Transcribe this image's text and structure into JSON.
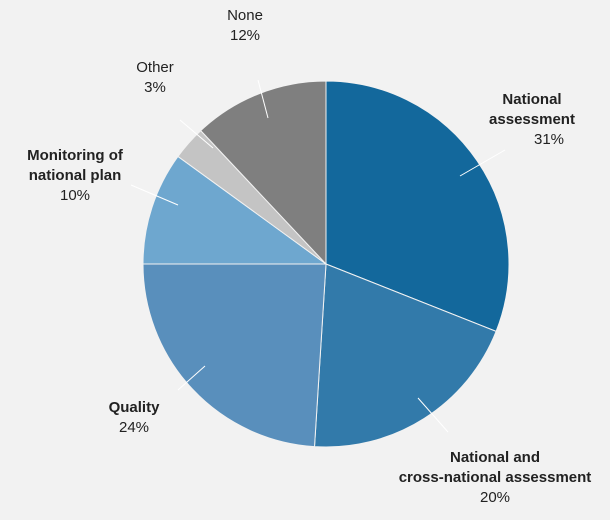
{
  "chart_data": {
    "type": "pie",
    "title": "",
    "start_angle_deg": 0,
    "direction": "clockwise",
    "slices": [
      {
        "name": "National assessment",
        "name_lines": [
          "National",
          "assessment"
        ],
        "bold": true,
        "value": 31,
        "value_label": "31%",
        "color": "#13689c"
      },
      {
        "name": "National and cross-national assessment",
        "name_lines": [
          "National and",
          "cross-national assessment"
        ],
        "bold": true,
        "value": 20,
        "value_label": "20%",
        "color": "#327aaa"
      },
      {
        "name": "Quality",
        "name_lines": [
          "Quality"
        ],
        "bold": true,
        "value": 24,
        "value_label": "24%",
        "color": "#598fbc"
      },
      {
        "name": "Monitoring of national plan",
        "name_lines": [
          "Monitoring of",
          "national plan"
        ],
        "bold": true,
        "value": 10,
        "value_label": "10%",
        "color": "#6ea7cf"
      },
      {
        "name": "Other",
        "name_lines": [
          "Other"
        ],
        "bold": false,
        "value": 3,
        "value_label": "3%",
        "color": "#c4c4c4"
      },
      {
        "name": "None",
        "name_lines": [
          "None"
        ],
        "bold": false,
        "value": 12,
        "value_label": "12%",
        "color": "#7f7f7f"
      }
    ]
  }
}
